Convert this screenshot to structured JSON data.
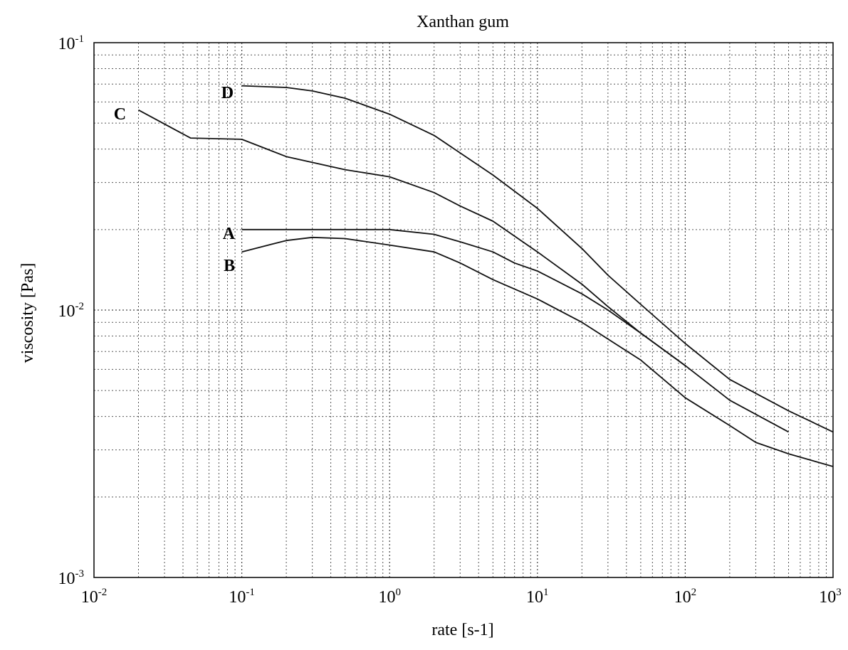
{
  "chart_data": {
    "type": "line",
    "title": "Xanthan gum",
    "xlabel": "rate [s-1]",
    "ylabel": "viscosity [Pas]",
    "xscale": "log",
    "yscale": "log",
    "xlim": [
      0.01,
      1000
    ],
    "ylim": [
      0.001,
      0.1
    ],
    "grid": true,
    "x_ticks": [
      {
        "base": "10",
        "exp": "-2",
        "value": 0.01
      },
      {
        "base": "10",
        "exp": "-1",
        "value": 0.1
      },
      {
        "base": "10",
        "exp": "0",
        "value": 1
      },
      {
        "base": "10",
        "exp": "1",
        "value": 10
      },
      {
        "base": "10",
        "exp": "2",
        "value": 100
      },
      {
        "base": "10",
        "exp": "3",
        "value": 1000
      }
    ],
    "y_ticks": [
      {
        "base": "10",
        "exp": "-3",
        "value": 0.001
      },
      {
        "base": "10",
        "exp": "-2",
        "value": 0.01
      },
      {
        "base": "10",
        "exp": "-1",
        "value": 0.1
      }
    ],
    "series": [
      {
        "name": "A",
        "x": [
          0.1,
          0.2,
          0.5,
          1,
          2,
          3,
          5,
          7,
          10,
          20,
          30,
          50,
          100,
          200,
          500
        ],
        "y": [
          0.02,
          0.02,
          0.02,
          0.02,
          0.0192,
          0.018,
          0.0165,
          0.015,
          0.014,
          0.0115,
          0.01,
          0.0082,
          0.0062,
          0.0046,
          0.0035
        ]
      },
      {
        "name": "B",
        "x": [
          0.1,
          0.2,
          0.3,
          0.5,
          1,
          2,
          3,
          5,
          10,
          20,
          50,
          100,
          200,
          300,
          500,
          1000
        ],
        "y": [
          0.0165,
          0.0182,
          0.0187,
          0.0185,
          0.0175,
          0.0165,
          0.015,
          0.013,
          0.011,
          0.009,
          0.0065,
          0.0047,
          0.0037,
          0.0032,
          0.0029,
          0.0026
        ]
      },
      {
        "name": "C",
        "x": [
          0.02,
          0.045,
          0.1,
          0.2,
          0.5,
          1,
          2,
          3,
          5,
          10,
          20,
          30,
          50,
          100
        ],
        "y": [
          0.056,
          0.044,
          0.0435,
          0.0375,
          0.0335,
          0.0315,
          0.0275,
          0.0245,
          0.0215,
          0.0165,
          0.0125,
          0.0103,
          0.0082,
          0.0062
        ]
      },
      {
        "name": "D",
        "x": [
          0.1,
          0.2,
          0.3,
          0.5,
          1,
          2,
          5,
          10,
          20,
          30,
          50,
          100,
          200,
          500,
          1000
        ],
        "y": [
          0.069,
          0.068,
          0.066,
          0.062,
          0.054,
          0.045,
          0.032,
          0.024,
          0.017,
          0.0135,
          0.0105,
          0.0075,
          0.0055,
          0.0042,
          0.0035
        ]
      }
    ],
    "curve_labels": [
      {
        "text": "A",
        "x": 0.09,
        "y": 0.0195
      },
      {
        "text": "B",
        "x": 0.09,
        "y": 0.0148
      },
      {
        "text": "C",
        "x": 0.0165,
        "y": 0.0545
      },
      {
        "text": "D",
        "x": 0.088,
        "y": 0.0655
      }
    ]
  }
}
